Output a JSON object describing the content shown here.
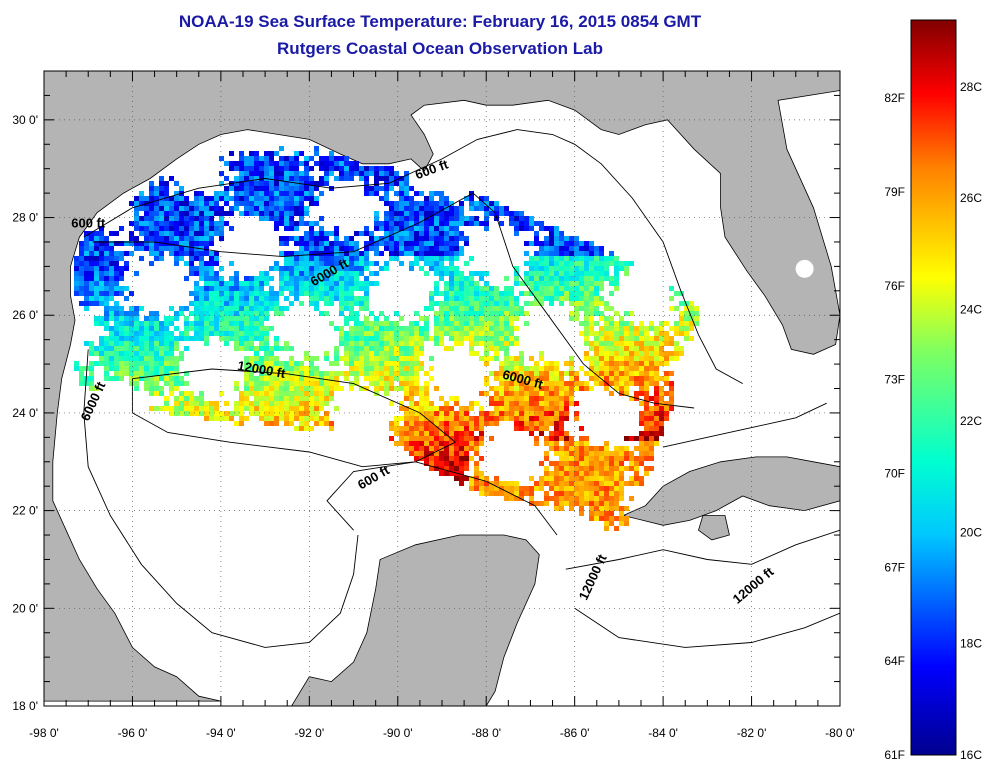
{
  "title": "NOAA-19 Sea Surface Temperature:  February 16, 2015 0854 GMT",
  "subtitle": "Rutgers Coastal Ocean Observation Lab",
  "x_ticks": [
    "-98 0'",
    "-96 0'",
    "-94 0'",
    "-92 0'",
    "-90 0'",
    "-88 0'",
    "-86 0'",
    "-84 0'",
    "-82 0'",
    "-80 0'"
  ],
  "y_ticks": [
    "30 0'",
    "28 0'",
    "26 0'",
    "24 0'",
    "22 0'",
    "20 0'",
    "18 0'"
  ],
  "contour_labels": [
    {
      "text": "600 ft",
      "lon": -89.2,
      "lat": 28.9,
      "angle": -20
    },
    {
      "text": "600 ft",
      "lon": -97.0,
      "lat": 27.8,
      "angle": 0
    },
    {
      "text": "6000 ft",
      "lon": -91.5,
      "lat": 26.8,
      "angle": -30
    },
    {
      "text": "12000 ft",
      "lon": -93.1,
      "lat": 24.8,
      "angle": 10
    },
    {
      "text": "6000 ft",
      "lon": -87.2,
      "lat": 24.6,
      "angle": 15
    },
    {
      "text": "6000 ft",
      "lon": -96.8,
      "lat": 24.2,
      "angle": -65
    },
    {
      "text": "600 ft",
      "lon": -90.5,
      "lat": 22.6,
      "angle": -30
    },
    {
      "text": "12000 ft",
      "lon": -85.5,
      "lat": 20.6,
      "angle": -65
    },
    {
      "text": "12000 ft",
      "lon": -81.9,
      "lat": 20.4,
      "angle": -40
    }
  ],
  "colorbar": {
    "fahrenheit_labels": [
      "82F",
      "79F",
      "76F",
      "73F",
      "70F",
      "67F",
      "64F",
      "61F"
    ],
    "celsius_labels": [
      "28C",
      "26C",
      "24C",
      "22C",
      "20C",
      "18C",
      "16C"
    ]
  },
  "colors": {
    "land": "#b4b4b4",
    "water": "#ffffff",
    "sst_cold": "#00008f",
    "sst_warm": "#800000"
  }
}
